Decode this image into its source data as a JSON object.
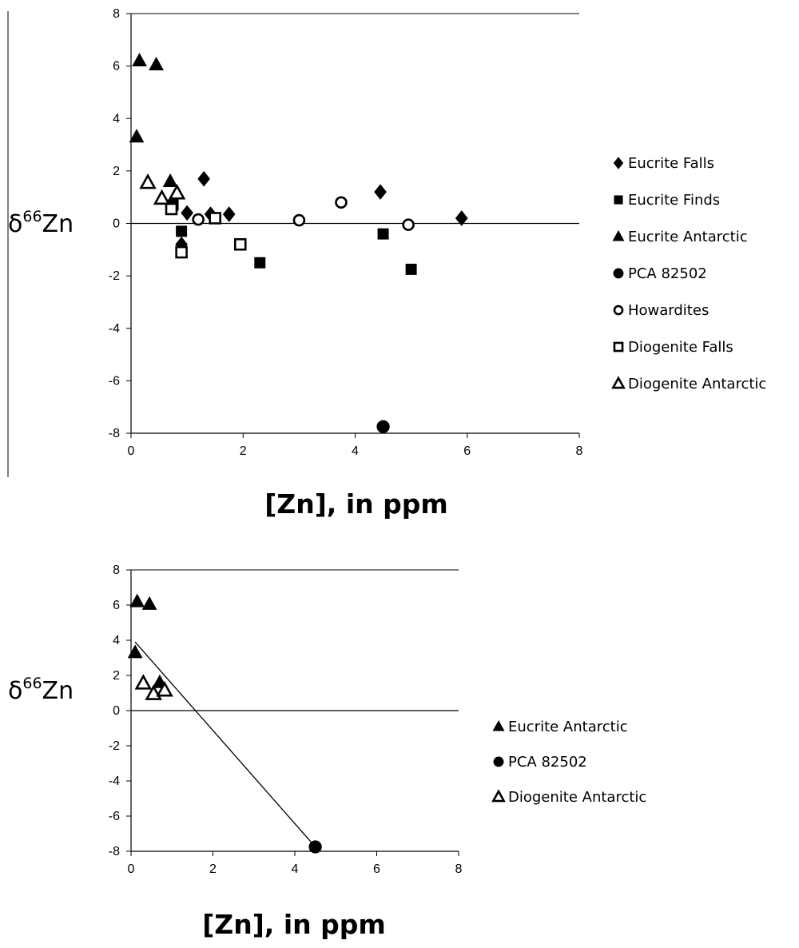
{
  "chart_data": [
    {
      "type": "scatter",
      "title": "",
      "xlabel": "[Zn], in ppm",
      "ylabel_base": "δ",
      "ylabel_sup": "66",
      "ylabel_rest": "Zn",
      "xlim": [
        0,
        8
      ],
      "ylim": [
        -8,
        8
      ],
      "x_ticks": [
        0,
        2,
        4,
        6,
        8
      ],
      "y_ticks": [
        -8,
        -6,
        -4,
        -2,
        0,
        2,
        4,
        6,
        8
      ],
      "grid": false,
      "legend_position": "right",
      "series": [
        {
          "name": "Eucrite Falls",
          "marker": "diamond",
          "filled": true,
          "x": [
            0.9,
            1.0,
            1.3,
            1.42,
            1.75,
            4.45,
            5.9
          ],
          "y": [
            -0.8,
            0.4,
            1.7,
            0.35,
            0.35,
            1.2,
            0.2
          ]
        },
        {
          "name": "Eucrite Finds",
          "marker": "square",
          "filled": true,
          "x": [
            0.75,
            0.9,
            2.3,
            4.5,
            5.0
          ],
          "y": [
            0.7,
            -0.3,
            -1.5,
            -0.4,
            -1.75
          ]
        },
        {
          "name": "Eucrite Antarctic",
          "marker": "triangle",
          "filled": true,
          "x": [
            0.1,
            0.15,
            0.45,
            0.7
          ],
          "y": [
            3.3,
            6.2,
            6.05,
            1.6
          ]
        },
        {
          "name": "PCA 82502",
          "marker": "circle",
          "filled": true,
          "x": [
            4.5
          ],
          "y": [
            -7.75
          ]
        },
        {
          "name": "Howardites",
          "marker": "circle",
          "filled": false,
          "x": [
            1.2,
            3.0,
            3.75,
            4.95
          ],
          "y": [
            0.15,
            0.12,
            0.8,
            -0.05
          ]
        },
        {
          "name": "Diogenite Falls",
          "marker": "square",
          "filled": false,
          "x": [
            0.72,
            0.9,
            1.5,
            1.95
          ],
          "y": [
            0.55,
            -1.1,
            0.2,
            -0.8
          ]
        },
        {
          "name": "Diogenite Antarctic",
          "marker": "triangle",
          "filled": false,
          "x": [
            0.3,
            0.55,
            0.82
          ],
          "y": [
            1.55,
            0.95,
            1.15
          ]
        }
      ]
    },
    {
      "type": "scatter",
      "title": "",
      "xlabel": "[Zn], in ppm",
      "ylabel_base": "δ",
      "ylabel_sup": "66",
      "ylabel_rest": "Zn",
      "xlim": [
        0,
        8
      ],
      "ylim": [
        -8,
        8
      ],
      "x_ticks": [
        0,
        2,
        4,
        6,
        8
      ],
      "y_ticks": [
        -8,
        -6,
        -4,
        -2,
        0,
        2,
        4,
        6,
        8
      ],
      "grid": false,
      "legend_position": "right",
      "trend_line": {
        "x": [
          0.1,
          4.5
        ],
        "y": [
          3.9,
          -7.75
        ]
      },
      "series": [
        {
          "name": "Eucrite Antarctic",
          "marker": "triangle",
          "filled": true,
          "x": [
            0.1,
            0.15,
            0.45,
            0.7
          ],
          "y": [
            3.3,
            6.2,
            6.05,
            1.6
          ]
        },
        {
          "name": "PCA 82502",
          "marker": "circle",
          "filled": true,
          "x": [
            4.5
          ],
          "y": [
            -7.75
          ]
        },
        {
          "name": "Diogenite Antarctic",
          "marker": "triangle",
          "filled": false,
          "x": [
            0.3,
            0.55,
            0.82
          ],
          "y": [
            1.55,
            0.95,
            1.15
          ]
        }
      ]
    }
  ]
}
